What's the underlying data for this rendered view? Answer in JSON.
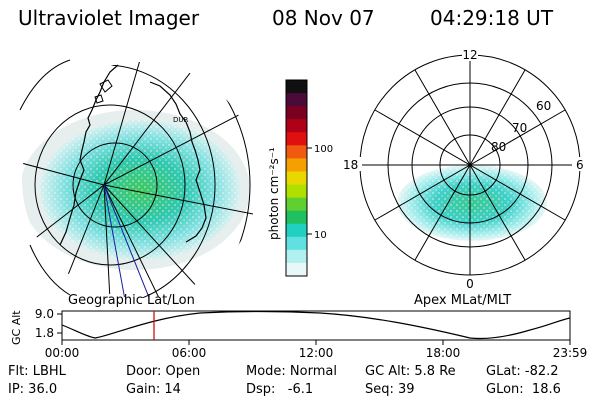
{
  "header": {
    "instrument": "Ultraviolet Imager",
    "date": "08 Nov 07",
    "time": "04:29:18 UT"
  },
  "left_panel": {
    "caption": "Geographic Lat/Lon",
    "coast_label": "DUR"
  },
  "colorbar": {
    "unit_label": "photon cm⁻²s⁻¹",
    "ticks": [
      "100",
      "10"
    ],
    "colors": [
      "#101010",
      "#4b0a3a",
      "#7a0020",
      "#b00018",
      "#e01010",
      "#f05a10",
      "#f5a000",
      "#e8d800",
      "#b0e000",
      "#60d030",
      "#20c060",
      "#20d0c0",
      "#60e0e0",
      "#b0f0f0",
      "#e8f8f8"
    ]
  },
  "right_panel": {
    "caption": "Apex MLat/MLT",
    "mlt_labels": {
      "top": "12",
      "left": "18",
      "right": "6",
      "bottom": "0"
    },
    "lat_labels": [
      "60",
      "70",
      "80"
    ]
  },
  "altitude_plot": {
    "ylabel": "GC Alt",
    "yticks": [
      "9.0",
      "1.8"
    ],
    "xticks": [
      "00:00",
      "06:00",
      "12:00",
      "18:00",
      "23:59"
    ],
    "marker_color": "#d01010"
  },
  "info": {
    "row1": {
      "flt": "Flt: LBHL",
      "door": "Door: Open",
      "mode": "Mode: Normal",
      "gcalt": "GC Alt: 5.8 Re",
      "glat": "GLat: -82.2"
    },
    "row2": {
      "ip": "IP: 36.0",
      "gain": "Gain: 14",
      "dsp": "Dsp:   -6.1",
      "seq": "Seq: 39",
      "glon": "GLon:  18.6"
    }
  }
}
